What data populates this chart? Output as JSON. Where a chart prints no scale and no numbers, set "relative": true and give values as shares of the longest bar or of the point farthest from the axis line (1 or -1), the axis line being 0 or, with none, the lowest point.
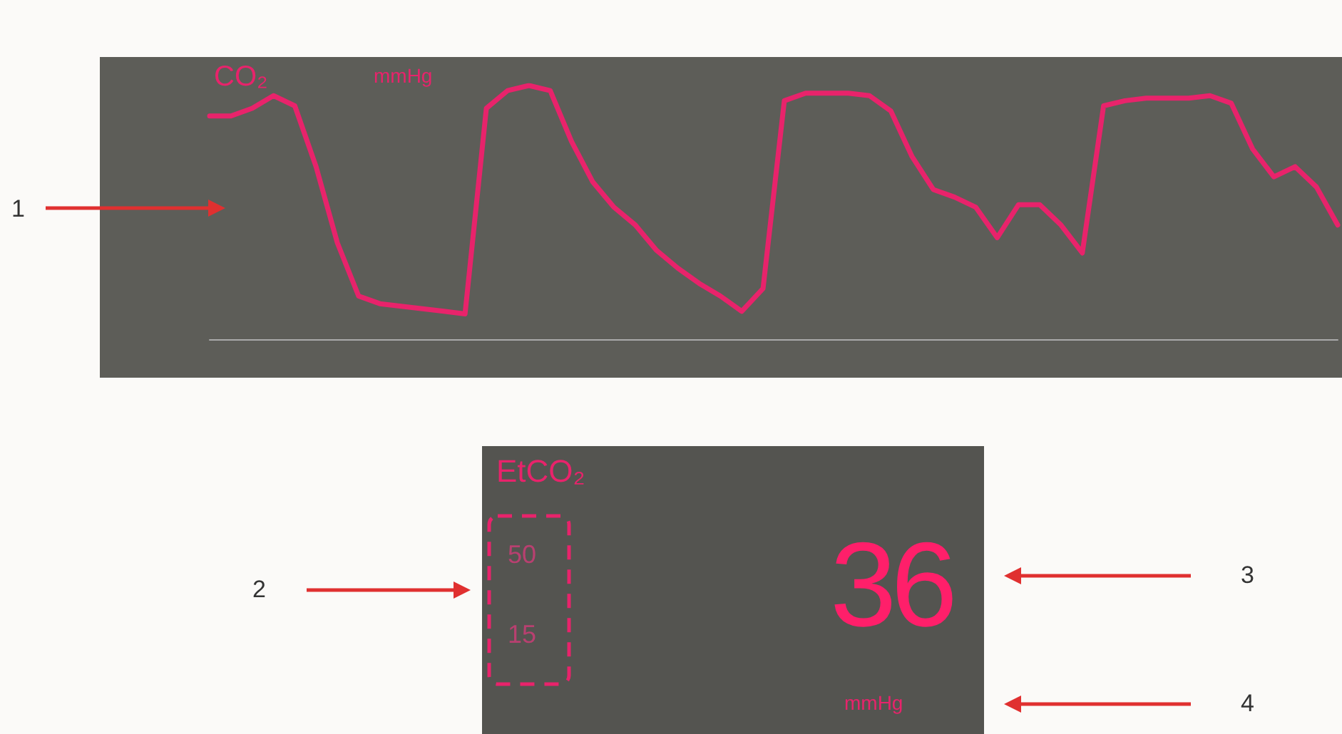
{
  "chart_data": {
    "type": "line",
    "relative": true,
    "ylabel": "CO₂",
    "color": "#e8236b",
    "categories": [
      null,
      null,
      null,
      null,
      null,
      null,
      null,
      null,
      null,
      null,
      null,
      null,
      null,
      null,
      null,
      null,
      null,
      null,
      null,
      null,
      null,
      null,
      null,
      null,
      null,
      null,
      null,
      null,
      null,
      null,
      null,
      null,
      null,
      null,
      null,
      null,
      null,
      null,
      null,
      null,
      null,
      null,
      null,
      null,
      null,
      null,
      null,
      null,
      null,
      null,
      null,
      null,
      null,
      null
    ],
    "values": [
      0.88,
      0.88,
      0.91,
      0.96,
      0.92,
      0.68,
      0.38,
      0.17,
      0.14,
      0.13,
      0.12,
      0.11,
      0.1,
      0.91,
      0.98,
      1.0,
      0.98,
      0.78,
      0.62,
      0.52,
      0.45,
      0.35,
      0.28,
      0.22,
      0.17,
      0.11,
      0.2,
      0.94,
      0.97,
      0.97,
      0.97,
      0.96,
      0.9,
      0.72,
      0.59,
      0.56,
      0.52,
      0.4,
      0.53,
      0.53,
      0.45,
      0.34,
      0.92,
      0.94,
      0.95,
      0.95,
      0.95,
      0.96,
      0.93,
      0.75,
      0.64,
      0.68,
      0.6,
      0.45
    ],
    "annotations": [
      "mmHg",
      "1",
      "2",
      "3",
      "4",
      "EtCO₂",
      "50",
      "15",
      "36",
      "mmHg"
    ]
  }
}
